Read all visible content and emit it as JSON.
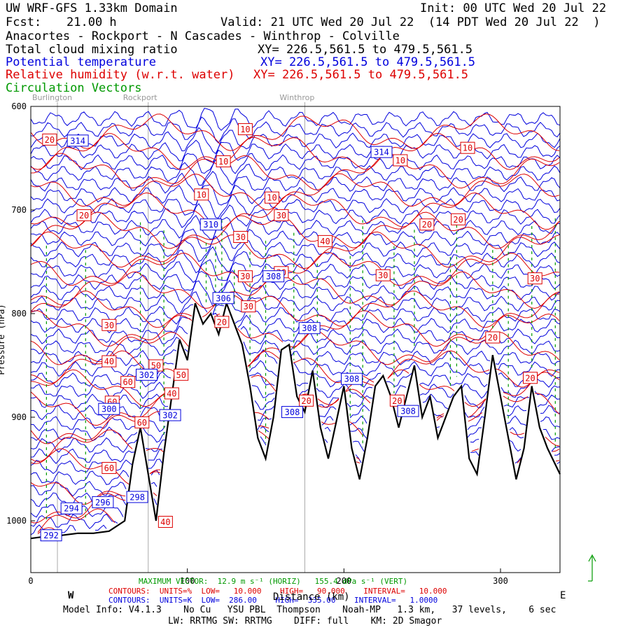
{
  "header": {
    "domain": "UW WRF-GFS 1.33km Domain",
    "init": "Init: 00 UTC Wed 20 Jul 22",
    "fcst_label": "Fcst:",
    "fcst_value": "21.00 h",
    "valid": "Valid: 21 UTC Wed 20 Jul 22  (14 PDT Wed 20 Jul 22  )",
    "route": "Anacortes - Rockport - N Cascades - Winthrop - Colville",
    "field1": "Total cloud mixing ratio",
    "field1_xy": "XY= 226.5,561.5 to 479.5,561.5",
    "field2": "Potential temperature",
    "field2_xy": "XY= 226.5,561.5 to 479.5,561.5",
    "field3": "Relative humidity (w.r.t. water)",
    "field3_xy": "XY= 226.5,561.5 to 479.5,561.5",
    "field4": "Circulation Vectors"
  },
  "locations": [
    {
      "name": "Burlington",
      "x": 17
    },
    {
      "name": "Rockport",
      "x": 75
    },
    {
      "name": "Winthrop",
      "x": 175
    }
  ],
  "footer": {
    "max_vector": "MAXIMUM VECTOR:  12.9 m s⁻¹ (HORIZ)   155.4 dPa s⁻¹ (VERT)",
    "rh_contours": "CONTOURS:  UNITS=%  LOW=   10.000    HIGH=   90.000    INTERVAL=   10.000",
    "pt_contours": "CONTOURS:  UNITS=K  LOW=  286.00    HIGH=  335.00    INTERVAL=   1.0000",
    "model_info": "Model Info: V4.1.3    No Cu   YSU PBL  Thompson    Noah-MP   1.3 km,   37 levels,    6 sec",
    "model_info2": "LW: RRTMG SW: RRTMG    DIFF: full    KM: 2D Smagor",
    "west": "W",
    "east": "E",
    "xlabel": "Distance (km)"
  },
  "colors": {
    "rh": "#dd0000",
    "theta": "#0000dd",
    "vectors": "#009900",
    "terrain": "#000000",
    "location_lines": "#aaaaaa"
  },
  "chart_data": {
    "type": "line",
    "xlabel": "Distance (km)",
    "ylabel": "Pressure (hPa)",
    "xlim": [
      0,
      338
    ],
    "ylim": [
      1050,
      600
    ],
    "y_inverted": true,
    "xticks": [
      0,
      100,
      200,
      300
    ],
    "yticks": [
      600,
      700,
      800,
      900,
      1000
    ],
    "series": [
      {
        "name": "Terrain (surface pressure)",
        "x": [
          0,
          10,
          20,
          30,
          40,
          50,
          60,
          65,
          70,
          75,
          80,
          85,
          90,
          95,
          100,
          105,
          110,
          115,
          120,
          125,
          130,
          135,
          140,
          145,
          150,
          155,
          160,
          165,
          170,
          175,
          180,
          185,
          190,
          195,
          200,
          205,
          210,
          215,
          220,
          225,
          230,
          235,
          240,
          245,
          250,
          255,
          260,
          265,
          270,
          275,
          280,
          285,
          290,
          295,
          300,
          305,
          310,
          315,
          320,
          325,
          330,
          338
        ],
        "y": [
          1017,
          1015,
          1014,
          1012,
          1012,
          1010,
          1000,
          945,
          910,
          955,
          1000,
          935,
          880,
          825,
          845,
          790,
          810,
          800,
          820,
          790,
          810,
          830,
          870,
          920,
          940,
          900,
          835,
          830,
          880,
          895,
          855,
          910,
          940,
          905,
          870,
          930,
          960,
          920,
          870,
          860,
          880,
          910,
          880,
          850,
          900,
          880,
          920,
          900,
          880,
          870,
          940,
          955,
          900,
          840,
          880,
          920,
          960,
          930,
          870,
          910,
          930,
          955
        ]
      }
    ],
    "rh_labels": [
      {
        "x": 12,
        "y": 632,
        "v": "20"
      },
      {
        "x": 34,
        "y": 705,
        "v": "20"
      },
      {
        "x": 137,
        "y": 622,
        "v": "10"
      },
      {
        "x": 123,
        "y": 653,
        "v": "10"
      },
      {
        "x": 109,
        "y": 685,
        "v": "10"
      },
      {
        "x": 154,
        "y": 688,
        "v": "10"
      },
      {
        "x": 160,
        "y": 705,
        "v": "30"
      },
      {
        "x": 134,
        "y": 726,
        "v": "30"
      },
      {
        "x": 137,
        "y": 764,
        "v": "30"
      },
      {
        "x": 160,
        "y": 760,
        "v": "30"
      },
      {
        "x": 188,
        "y": 730,
        "v": "40"
      },
      {
        "x": 225,
        "y": 763,
        "v": "30"
      },
      {
        "x": 236,
        "y": 652,
        "v": "10"
      },
      {
        "x": 279,
        "y": 640,
        "v": "10"
      },
      {
        "x": 253,
        "y": 714,
        "v": "20"
      },
      {
        "x": 273,
        "y": 709,
        "v": "20"
      },
      {
        "x": 322,
        "y": 766,
        "v": "30"
      },
      {
        "x": 122,
        "y": 808,
        "v": "20"
      },
      {
        "x": 139,
        "y": 793,
        "v": "30"
      },
      {
        "x": 50,
        "y": 811,
        "v": "30"
      },
      {
        "x": 50,
        "y": 846,
        "v": "40"
      },
      {
        "x": 80,
        "y": 850,
        "v": "50"
      },
      {
        "x": 62,
        "y": 866,
        "v": "60"
      },
      {
        "x": 96,
        "y": 859,
        "v": "50"
      },
      {
        "x": 90,
        "y": 877,
        "v": "40"
      },
      {
        "x": 52,
        "y": 885,
        "v": "60"
      },
      {
        "x": 71,
        "y": 905,
        "v": "60"
      },
      {
        "x": 176,
        "y": 884,
        "v": "20"
      },
      {
        "x": 234,
        "y": 884,
        "v": "20"
      },
      {
        "x": 295,
        "y": 823,
        "v": "20"
      },
      {
        "x": 319,
        "y": 862,
        "v": "20"
      },
      {
        "x": 50,
        "y": 949,
        "v": "60"
      },
      {
        "x": 86,
        "y": 1001,
        "v": "40"
      }
    ],
    "theta_labels": [
      {
        "x": 30,
        "y": 633,
        "v": "314"
      },
      {
        "x": 224,
        "y": 644,
        "v": "314"
      },
      {
        "x": 115,
        "y": 714,
        "v": "310"
      },
      {
        "x": 155,
        "y": 764,
        "v": "308"
      },
      {
        "x": 123,
        "y": 785,
        "v": "306"
      },
      {
        "x": 178,
        "y": 814,
        "v": "308"
      },
      {
        "x": 74,
        "y": 859,
        "v": "302"
      },
      {
        "x": 205,
        "y": 863,
        "v": "308"
      },
      {
        "x": 167,
        "y": 895,
        "v": "308"
      },
      {
        "x": 50,
        "y": 892,
        "v": "300"
      },
      {
        "x": 89,
        "y": 898,
        "v": "302"
      },
      {
        "x": 241,
        "y": 894,
        "v": "308"
      },
      {
        "x": 68,
        "y": 977,
        "v": "298"
      },
      {
        "x": 46,
        "y": 982,
        "v": "296"
      },
      {
        "x": 26,
        "y": 988,
        "v": "294"
      },
      {
        "x": 13,
        "y": 1014,
        "v": "292"
      }
    ]
  }
}
